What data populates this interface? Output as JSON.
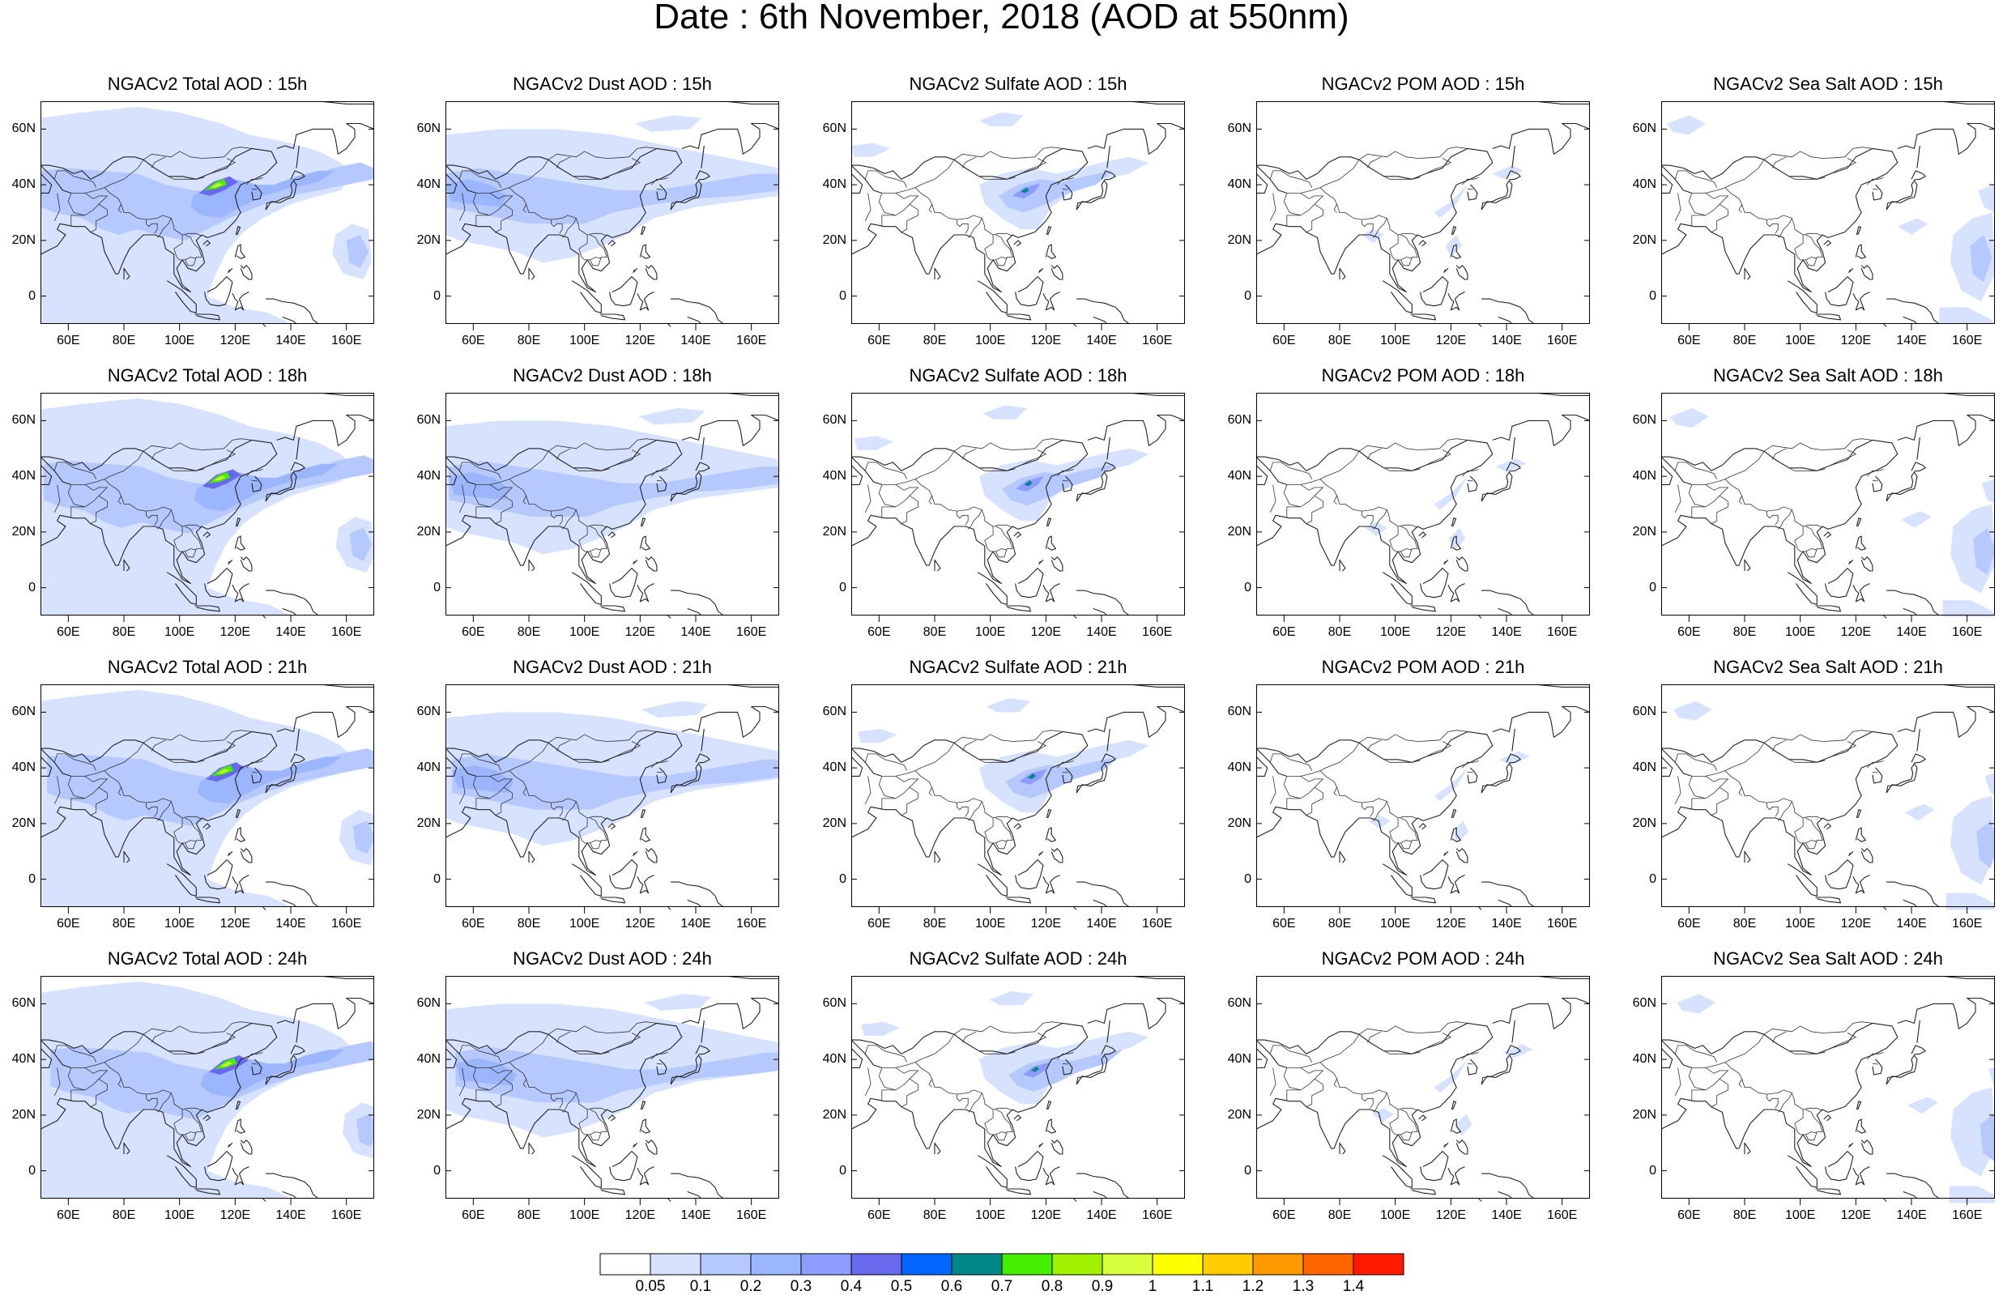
{
  "title": "Date : 6th November, 2018 (AOD at 550nm)",
  "columns": [
    {
      "species": "Total",
      "titles": [
        "NGACv2 Total AOD : 15h",
        "NGACv2 Total AOD : 18h",
        "NGACv2 Total AOD : 21h",
        "NGACv2 Total AOD : 24h"
      ]
    },
    {
      "species": "Dust",
      "titles": [
        "NGACv2 Dust AOD : 15h",
        "NGACv2 Dust AOD : 18h",
        "NGACv2 Dust AOD : 21h",
        "NGACv2 Dust AOD : 24h"
      ]
    },
    {
      "species": "Sulfate",
      "titles": [
        "NGACv2 Sulfate AOD : 15h",
        "NGACv2 Sulfate AOD : 18h",
        "NGACv2 Sulfate AOD : 21h",
        "NGACv2 Sulfate AOD : 24h"
      ]
    },
    {
      "species": "POM",
      "titles": [
        "NGACv2 POM AOD : 15h",
        "NGACv2 POM AOD : 18h",
        "NGACv2 POM AOD : 21h",
        "NGACv2 POM AOD : 24h"
      ]
    },
    {
      "species": "Sea Salt",
      "titles": [
        "NGACv2 Sea Salt AOD : 15h",
        "NGACv2 Sea Salt AOD : 18h",
        "NGACv2 Sea Salt AOD : 21h",
        "NGACv2 Sea Salt  AOD : 24h"
      ]
    }
  ],
  "hours": [
    "15h",
    "18h",
    "21h",
    "24h"
  ],
  "map_extent": {
    "lon": [
      50,
      170
    ],
    "lat": [
      -10,
      70
    ]
  },
  "lon_ticks": [
    "60E",
    "80E",
    "100E",
    "120E",
    "140E",
    "160E"
  ],
  "lon_tick_values": [
    60,
    80,
    100,
    120,
    140,
    160
  ],
  "lat_ticks": [
    "60N",
    "40N",
    "20N",
    "0"
  ],
  "lat_tick_values": [
    60,
    40,
    20,
    0
  ],
  "colorbar": {
    "labels": [
      "0.05",
      "0.1",
      "0.2",
      "0.3",
      "0.4",
      "0.5",
      "0.6",
      "0.7",
      "0.8",
      "0.9",
      "1",
      "1.1",
      "1.2",
      "1.3",
      "1.4"
    ],
    "colors": [
      "#ffffff",
      "#d6e2ff",
      "#b5c9ff",
      "#9bb5ff",
      "#8e9bff",
      "#6969ee",
      "#0066ff",
      "#008888",
      "#44ee00",
      "#a0f000",
      "#d8ff3c",
      "#ffff00",
      "#ffcc00",
      "#ff9900",
      "#ff6600",
      "#ff1a00"
    ]
  }
}
